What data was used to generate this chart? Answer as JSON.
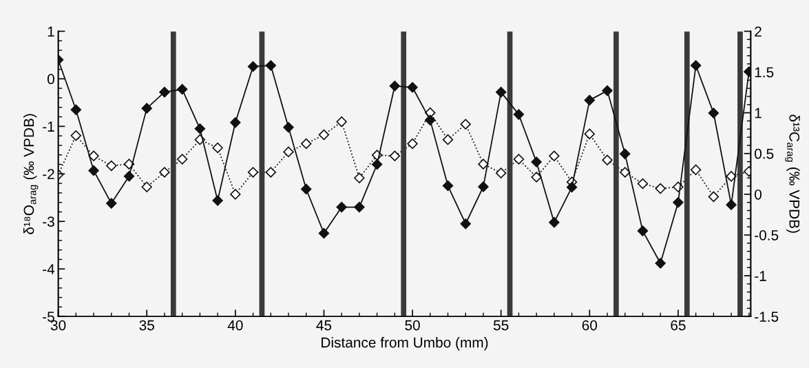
{
  "chart_data": {
    "type": "line",
    "xlabel": "Distance from Umbo (mm)",
    "ylabel": "δ¹⁸O$_{arag}$ (‰ VPDB)",
    "y2label": "δ¹³C$_{arag}$ (‰ VPDB)",
    "x": [
      30,
      31,
      32,
      33,
      34,
      35,
      36,
      37,
      38,
      39,
      40,
      41,
      42,
      43,
      44,
      45,
      46,
      47,
      48,
      49,
      50,
      51,
      52,
      53,
      54,
      55,
      56,
      57,
      58,
      59,
      60,
      61,
      62,
      63,
      64,
      65,
      66,
      67,
      68,
      69
    ],
    "series": [
      {
        "color": "#111111",
        "marker": "diamond",
        "line_style": "solid",
        "values": [
          0.4,
          -0.65,
          -1.93,
          -2.62,
          -2.05,
          -0.62,
          -0.28,
          -0.22,
          -1.05,
          -2.56,
          -0.92,
          0.26,
          0.28,
          -1.02,
          -2.32,
          -3.25,
          -2.7,
          -2.7,
          -1.8,
          -0.15,
          -0.18,
          -0.87,
          -2.25,
          -3.05,
          -2.27,
          -0.28,
          -0.75,
          -1.75,
          -3.02,
          -2.28,
          -0.45,
          -0.25,
          -1.58,
          -3.2,
          -3.88,
          -2.6,
          0.28,
          -0.72,
          -2.65,
          0.15
        ]
      },
      {
        "color": "#111111",
        "marker": "diamond",
        "line_style": "dotted",
        "axis": "y2",
        "values": [
          0.24,
          0.72,
          0.47,
          0.35,
          0.37,
          0.09,
          0.27,
          0.43,
          0.67,
          0.57,
          0.0,
          0.27,
          0.27,
          0.52,
          0.62,
          0.73,
          0.89,
          0.2,
          0.48,
          0.47,
          0.62,
          1.0,
          0.67,
          0.86,
          0.37,
          0.26,
          0.43,
          0.21,
          0.47,
          0.15,
          0.74,
          0.42,
          0.27,
          0.13,
          0.07,
          0.09,
          0.3,
          -0.03,
          0.22,
          0.28
        ]
      }
    ],
    "bands": [
      {
        "axis": "x",
        "from": 36.35,
        "to": 36.65,
        "color": "#3a3a3a"
      },
      {
        "axis": "x",
        "from": 41.35,
        "to": 41.65,
        "color": "#3a3a3a"
      },
      {
        "axis": "x",
        "from": 49.35,
        "to": 49.65,
        "color": "#3a3a3a"
      },
      {
        "axis": "x",
        "from": 55.35,
        "to": 55.65,
        "color": "#3a3a3a"
      },
      {
        "axis": "x",
        "from": 61.35,
        "to": 61.65,
        "color": "#3a3a3a"
      },
      {
        "axis": "x",
        "from": 65.35,
        "to": 65.65,
        "color": "#3a3a3a"
      },
      {
        "axis": "x",
        "from": 68.35,
        "to": 68.65,
        "color": "#3a3a3a"
      }
    ],
    "xlim": [
      30,
      69.1
    ],
    "xticks": [
      30,
      35,
      40,
      45,
      50,
      55,
      60,
      65
    ],
    "ylim": [
      -5,
      1
    ],
    "yticks": [
      -5,
      -4,
      -3,
      -2,
      -1,
      0,
      1
    ],
    "y2lim": [
      -1.5,
      2
    ],
    "y2ticks": [
      -1.5,
      -1,
      -0.5,
      0,
      0.5,
      1,
      1.5,
      2
    ],
    "grid": false,
    "legend": false
  }
}
